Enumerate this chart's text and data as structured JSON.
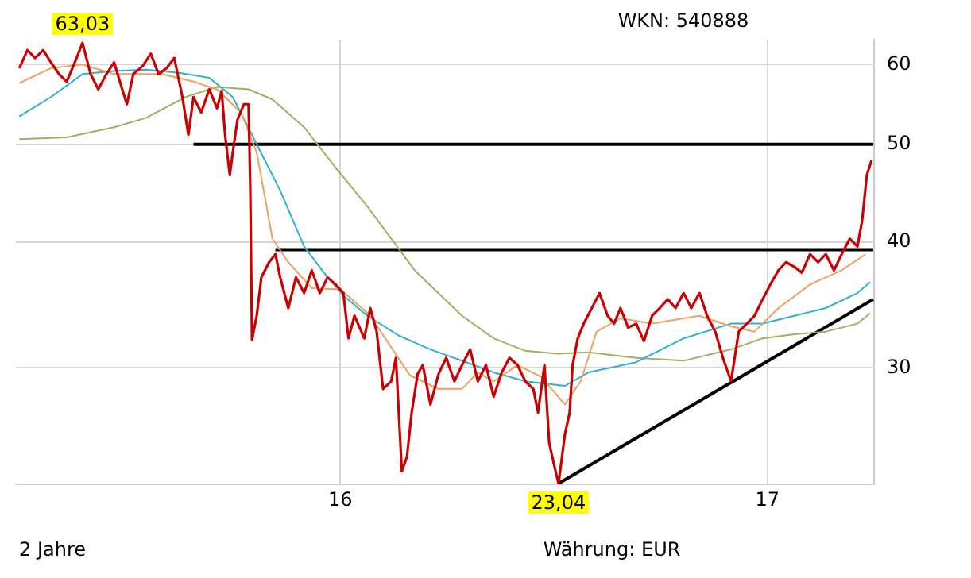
{
  "chart_data": {
    "type": "line",
    "subtitle": "WKN: 540888",
    "annotations": [
      "2 Jahre",
      "Währung: EUR",
      {
        "text": "63,03",
        "x": 2015.396,
        "y": 63.03
      },
      {
        "text": "23,04",
        "x": 2016.511,
        "y": 23.04
      }
    ],
    "xlim": [
      2015.24,
      2017.25
    ],
    "xticks": [
      {
        "value": 2016,
        "label": "16"
      },
      {
        "value": 2017,
        "label": "17"
      }
    ],
    "ylim": [
      23,
      63.5
    ],
    "yticks": [
      30,
      40,
      50,
      60
    ],
    "log": "y",
    "grid": true,
    "legend": false,
    "marker": "none",
    "series": [
      {
        "color": "#cc0000",
        "x": [
          2015.248,
          2015.267,
          2015.285,
          2015.304,
          2015.322,
          2015.341,
          2015.359,
          2015.378,
          2015.396,
          2015.415,
          2015.433,
          2015.452,
          2015.47,
          2015.489,
          2015.5,
          2015.515,
          2015.537,
          2015.556,
          2015.574,
          2015.593,
          2015.611,
          2015.63,
          2015.644,
          2015.656,
          2015.674,
          2015.693,
          2015.711,
          2015.722,
          2015.73,
          2015.741,
          2015.748,
          2015.759,
          2015.774,
          2015.785,
          2015.789,
          2015.793,
          2015.804,
          2015.815,
          2015.833,
          2015.848,
          2015.859,
          2015.878,
          2015.896,
          2015.915,
          2015.933,
          2015.952,
          2015.97,
          2015.989,
          2016.007,
          2016.019,
          2016.033,
          2016.056,
          2016.07,
          2016.085,
          2016.1,
          2016.119,
          2016.13,
          2016.144,
          2016.156,
          2016.167,
          2016.181,
          2016.193,
          2016.211,
          2016.23,
          2016.248,
          2016.267,
          2016.285,
          2016.304,
          2016.322,
          2016.341,
          2016.359,
          2016.378,
          2016.396,
          2016.415,
          2016.433,
          2016.452,
          2016.463,
          2016.478,
          2016.489,
          2016.5,
          2016.511,
          2016.526,
          2016.537,
          2016.544,
          2016.556,
          2016.57,
          2016.589,
          2016.607,
          2016.626,
          2016.641,
          2016.656,
          2016.674,
          2016.693,
          2016.711,
          2016.73,
          2016.748,
          2016.767,
          2016.785,
          2016.804,
          2016.822,
          2016.841,
          2016.859,
          2016.878,
          2016.896,
          2016.915,
          2016.933,
          2016.952,
          2016.97,
          2016.989,
          2017.007,
          2017.026,
          2017.044,
          2017.063,
          2017.081,
          2017.1,
          2017.119,
          2017.137,
          2017.156,
          2017.174,
          2017.193,
          2017.211,
          2017.222,
          2017.233,
          2017.244
        ],
        "values": [
          59.5,
          62.0,
          60.9,
          62.0,
          60.3,
          58.7,
          57.7,
          60.3,
          63.03,
          58.7,
          56.7,
          58.7,
          60.3,
          56.7,
          54.8,
          58.7,
          59.8,
          61.5,
          58.7,
          59.5,
          60.9,
          55.7,
          51.1,
          55.7,
          53.8,
          56.7,
          54.3,
          56.5,
          51.1,
          46.6,
          49.1,
          52.9,
          54.8,
          54.8,
          45.2,
          32.0,
          33.8,
          36.9,
          38.2,
          38.9,
          36.9,
          34.4,
          36.9,
          35.6,
          37.5,
          35.6,
          36.9,
          36.3,
          35.6,
          32.1,
          33.8,
          32.1,
          34.4,
          32.6,
          28.6,
          29.1,
          30.7,
          23.7,
          24.5,
          27.1,
          29.6,
          30.2,
          27.6,
          29.6,
          30.7,
          29.1,
          30.2,
          31.3,
          29.1,
          30.2,
          28.1,
          29.7,
          30.7,
          30.2,
          29.1,
          28.6,
          27.1,
          30.2,
          25.3,
          24.1,
          23.04,
          25.8,
          27.1,
          30.2,
          32.1,
          33.2,
          34.4,
          35.6,
          33.8,
          33.2,
          34.4,
          32.9,
          33.2,
          31.9,
          33.8,
          34.4,
          35.1,
          34.4,
          35.6,
          34.4,
          35.6,
          33.8,
          32.6,
          30.7,
          29.1,
          32.6,
          33.2,
          33.8,
          35.1,
          36.3,
          37.5,
          38.2,
          37.8,
          37.3,
          38.9,
          38.2,
          38.9,
          37.5,
          38.9,
          40.3,
          39.6,
          42.0,
          46.6,
          48.2
        ]
      },
      {
        "color": "#f0a060",
        "x": [
          2015.248,
          2015.322,
          2015.396,
          2015.47,
          2015.581,
          2015.656,
          2015.711,
          2015.767,
          2015.804,
          2015.841,
          2015.878,
          2015.933,
          2016.0,
          2016.07,
          2016.163,
          2016.23,
          2016.285,
          2016.322,
          2016.359,
          2016.415,
          2016.47,
          2016.526,
          2016.563,
          2016.6,
          2016.656,
          2016.73,
          2016.841,
          2016.915,
          2016.97,
          2017.026,
          2017.1,
          2017.174,
          2017.23
        ],
        "values": [
          57.5,
          59.5,
          60.0,
          58.7,
          58.7,
          57.7,
          56.7,
          53.8,
          49.1,
          40.3,
          38.2,
          36.0,
          35.9,
          33.8,
          29.5,
          28.6,
          28.6,
          29.7,
          29.1,
          30.2,
          29.4,
          27.6,
          29.1,
          32.6,
          33.6,
          33.2,
          33.8,
          33.0,
          32.6,
          34.4,
          36.3,
          37.5,
          38.9
        ]
      },
      {
        "color": "#30b0d0",
        "x": [
          2015.248,
          2015.322,
          2015.396,
          2015.47,
          2015.544,
          2015.619,
          2015.693,
          2015.748,
          2015.804,
          2015.859,
          2015.915,
          2015.97,
          2016.007,
          2016.063,
          2016.137,
          2016.211,
          2016.285,
          2016.359,
          2016.433,
          2016.526,
          2016.581,
          2016.693,
          2016.804,
          2016.915,
          2016.989,
          2017.063,
          2017.137,
          2017.211,
          2017.241
        ],
        "values": [
          53.3,
          55.7,
          58.7,
          59.1,
          59.3,
          58.9,
          58.2,
          55.7,
          50.0,
          45.0,
          39.6,
          36.9,
          35.4,
          33.8,
          32.3,
          31.3,
          30.5,
          29.7,
          29.1,
          28.8,
          29.7,
          30.4,
          32.1,
          33.2,
          33.2,
          33.8,
          34.4,
          35.6,
          36.5
        ]
      },
      {
        "color": "#a0b060",
        "x": [
          2015.248,
          2015.359,
          2015.47,
          2015.544,
          2015.637,
          2015.711,
          2015.785,
          2015.841,
          2015.915,
          2015.989,
          2016.063,
          2016.174,
          2016.285,
          2016.359,
          2016.433,
          2016.507,
          2016.581,
          2016.693,
          2016.804,
          2016.915,
          2016.989,
          2017.063,
          2017.137,
          2017.211,
          2017.241
        ],
        "values": [
          50.6,
          50.8,
          52.0,
          53.1,
          55.7,
          57.0,
          56.7,
          55.4,
          52.0,
          47.4,
          43.4,
          37.5,
          33.8,
          32.1,
          31.2,
          31.0,
          31.1,
          30.7,
          30.5,
          31.3,
          32.1,
          32.4,
          32.6,
          33.2,
          34.0
        ]
      },
      {
        "color": "#000000",
        "x": [
          2015.656,
          2017.248
        ],
        "values": [
          50,
          50
        ]
      },
      {
        "color": "#000000",
        "x": [
          2015.848,
          2017.248
        ],
        "values": [
          39.3,
          39.3
        ]
      },
      {
        "color": "#000000",
        "x": [
          2016.511,
          2017.248
        ],
        "values": [
          23.04,
          35.1
        ]
      }
    ]
  }
}
